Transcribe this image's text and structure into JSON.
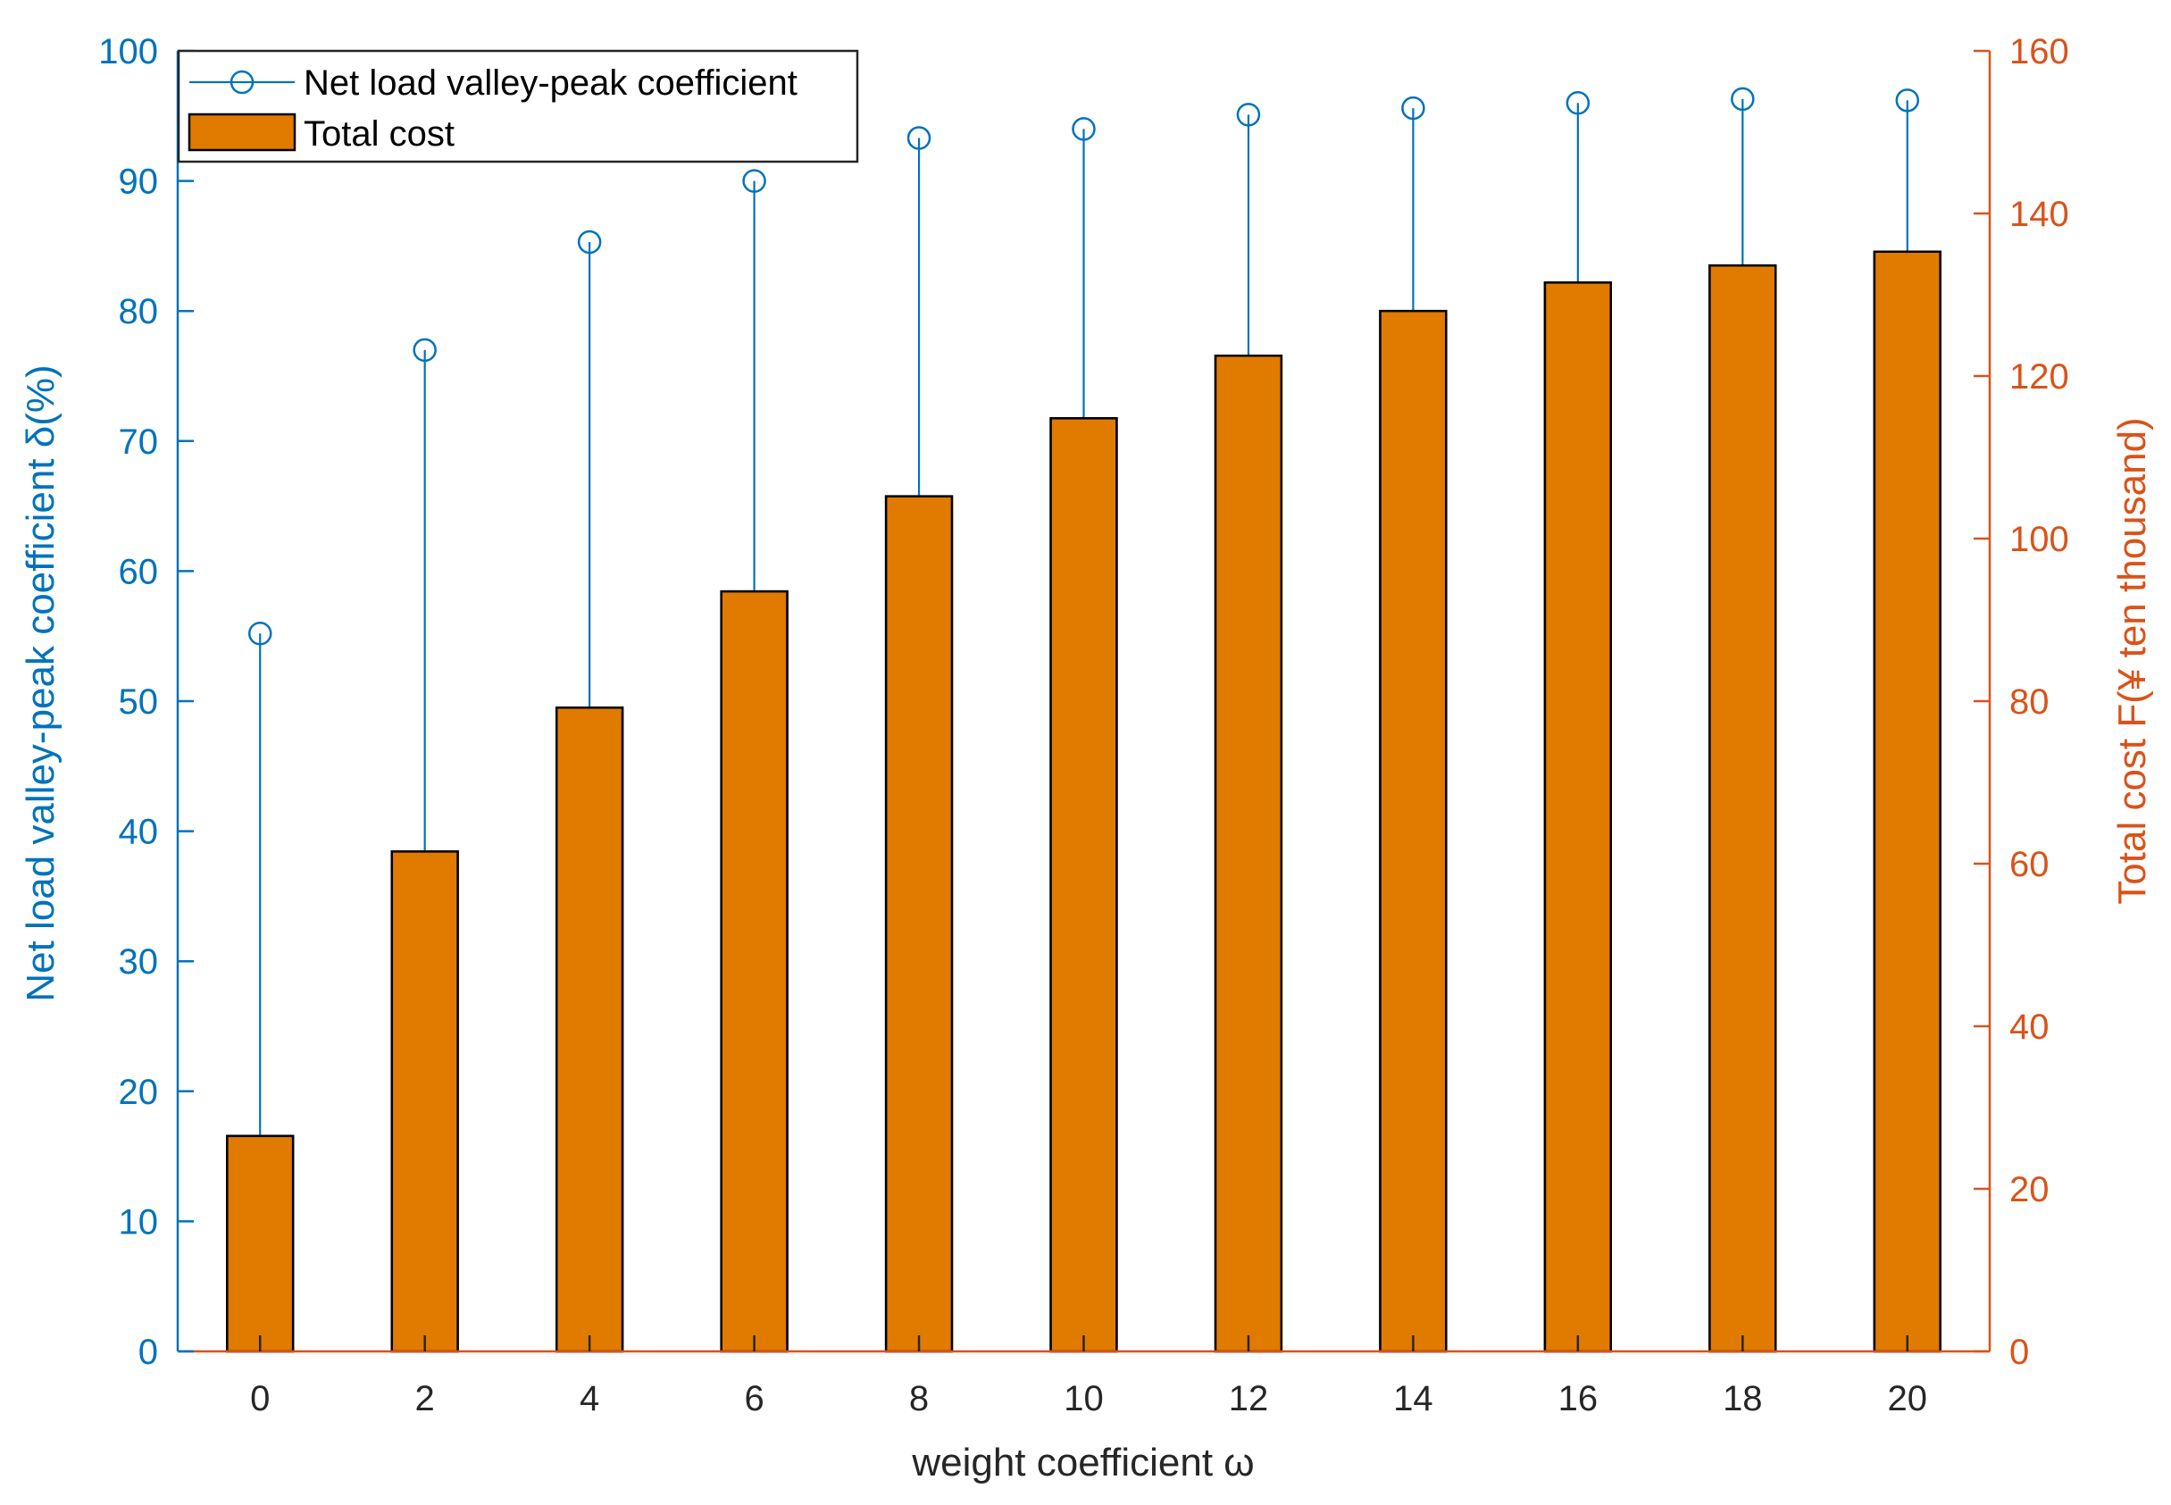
{
  "chart_data": {
    "type": "bar",
    "xlabel": "weight coefficient ω",
    "x": [
      0,
      2,
      4,
      6,
      8,
      10,
      12,
      14,
      16,
      18,
      20
    ],
    "xticks": [
      "0",
      "2",
      "4",
      "6",
      "8",
      "10",
      "12",
      "14",
      "16",
      "18",
      "20"
    ],
    "xlim": [
      -1,
      21
    ],
    "left_axis": {
      "label": "Net load valley-peak coefficient δ(%)",
      "ylim": [
        0,
        100
      ],
      "ticks": [
        "0",
        "10",
        "20",
        "30",
        "40",
        "50",
        "60",
        "70",
        "80",
        "90",
        "100"
      ],
      "color": "#0072BD"
    },
    "right_axis": {
      "label": "Total cost F(¥ ten thousand)",
      "ylim": [
        0,
        160
      ],
      "ticks": [
        "0",
        "20",
        "40",
        "60",
        "80",
        "100",
        "120",
        "140",
        "160"
      ],
      "color": "#D95319"
    },
    "series": [
      {
        "name": "Net load valley-peak coefficient",
        "type": "stem",
        "axis": "left",
        "color": "#0072BD",
        "values": [
          55.2,
          77.0,
          85.3,
          90.0,
          93.3,
          94.0,
          95.1,
          95.6,
          96.0,
          96.3,
          96.2
        ]
      },
      {
        "name": "Total cost",
        "type": "bar",
        "axis": "right",
        "color": "#E07B00",
        "values": [
          26.5,
          61.5,
          79.2,
          93.5,
          105.2,
          114.8,
          122.5,
          128.0,
          131.5,
          133.6,
          135.3
        ]
      }
    ],
    "legend": {
      "position": "top-left",
      "entries": [
        "Net load valley-peak coefficient",
        "Total cost"
      ]
    },
    "grid": false
  }
}
